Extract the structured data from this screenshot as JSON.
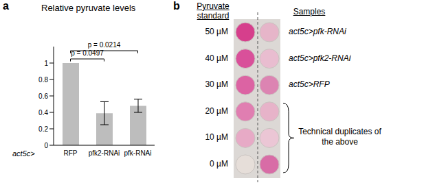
{
  "panel_labels": [
    "a",
    "b"
  ],
  "chart_data": {
    "type": "bar",
    "title": "Relative pyruvate levels",
    "xlabel": "act5c>",
    "categories": [
      "RFP",
      "pfk2-RNAi",
      "pfk-RNAi"
    ],
    "values": [
      1.0,
      0.39,
      0.48
    ],
    "errors": [
      0,
      0.14,
      0.08
    ],
    "color": "#bdbdbd",
    "ylim": [
      0,
      1.2
    ],
    "yticks": [
      0,
      0.2,
      0.4,
      0.6,
      0.8,
      1
    ],
    "grid": false,
    "annotations": [
      {
        "text": "p = 0.0497",
        "from": "RFP",
        "to": "pfk2-RNAi",
        "y": 1.05
      },
      {
        "text": "p = 0.0214",
        "from": "RFP",
        "to": "pfk-RNAi",
        "y": 1.15
      }
    ]
  },
  "plate": {
    "standard_heading": "Pyruvate standard",
    "sample_heading": "Samples",
    "standards": [
      {
        "label": "50 µM",
        "color": "#d63f8c"
      },
      {
        "label": "40 µM",
        "color": "#d9509a"
      },
      {
        "label": "30 µM",
        "color": "#dc63a3"
      },
      {
        "label": "20 µM",
        "color": "#e07eb1"
      },
      {
        "label": "10 µM",
        "color": "#e7aac6"
      },
      {
        "label": "0 µM",
        "color": "#e6ded9"
      }
    ],
    "samples": [
      {
        "label": "act5c>pfk-RNAi",
        "color": "#e6b5c9"
      },
      {
        "label": "act5c>pfk2-RNAi",
        "color": "#e9bdd0"
      },
      {
        "label": "act5c>RFP",
        "color": "#dc84b2"
      }
    ],
    "duplicates": {
      "label": "Technical duplicates of the above",
      "colors": [
        "#e7b3c9",
        "#ebc6d5",
        "#d86ca6"
      ]
    }
  }
}
